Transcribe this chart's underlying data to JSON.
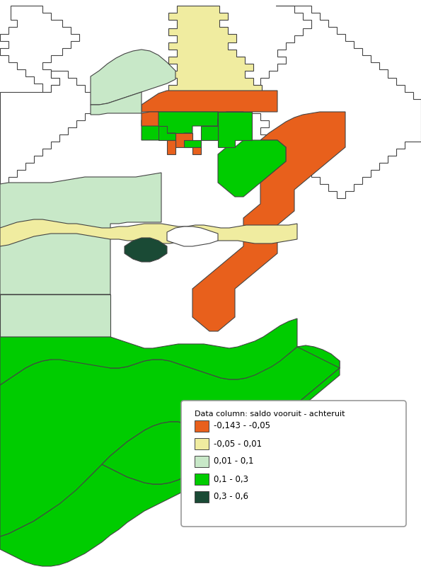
{
  "legend_title": "Data column: saldo vooruit - achteruit",
  "legend_labels": [
    "-0,143 - -0,05",
    "-0,05 - 0,01",
    "0,01 - 0,1",
    "0,1 - 0,3",
    "0,3 - 0,6"
  ],
  "OR": "#E8601C",
  "YE": "#F0ECA0",
  "LG": "#C8E8C8",
  "GR": "#00CC00",
  "DG": "#1A4A35",
  "WH": "#FFFFFF",
  "BD": "#444444",
  "figsize": [
    5.95,
    8.11
  ],
  "dpi": 100
}
